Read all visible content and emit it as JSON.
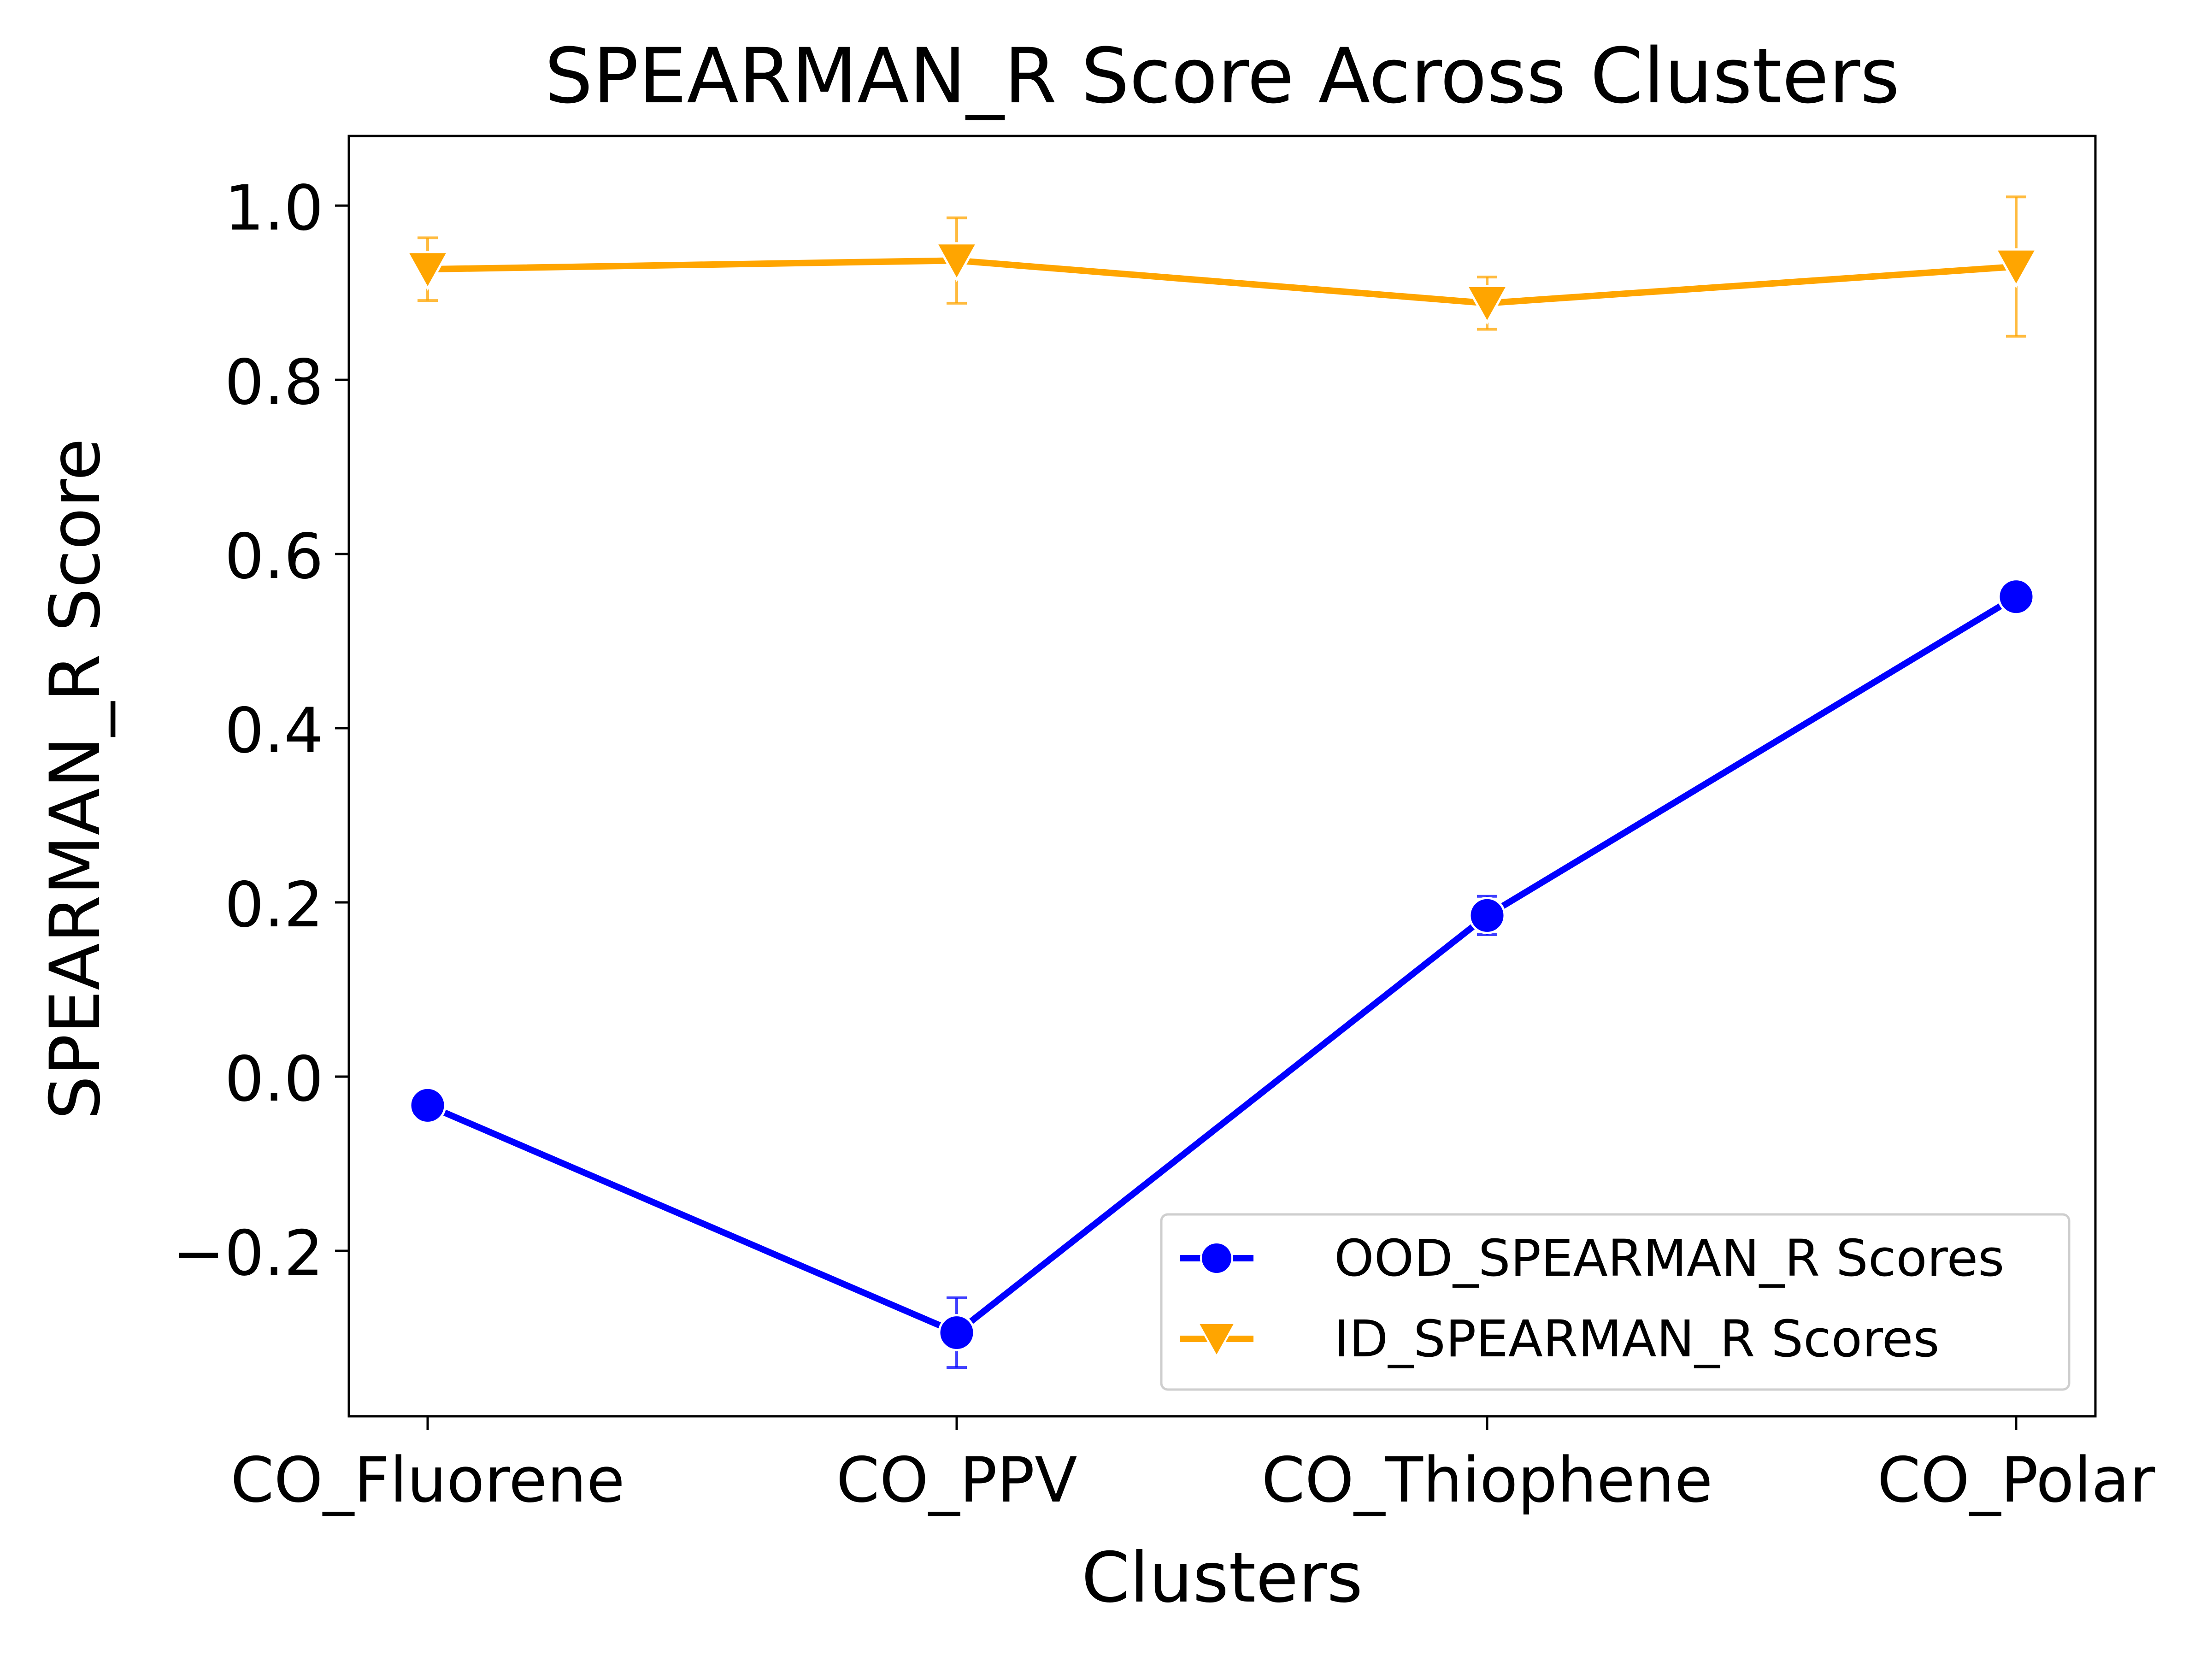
{
  "chart_data": {
    "type": "line",
    "title": "SPEARMAN_R Score Across Clusters",
    "xlabel": "Clusters",
    "ylabel": "SPEARMAN_R Score",
    "categories": [
      "CO_Fluorene",
      "CO_PPV",
      "CO_Thiophene",
      "CO_Polar"
    ],
    "ylim": [
      -0.39,
      1.08
    ],
    "yticks": [
      -0.2,
      0.0,
      0.2,
      0.4,
      0.6,
      0.8,
      1.0
    ],
    "ytick_labels": [
      "−0.2",
      "0.0",
      "0.2",
      "0.4",
      "0.6",
      "0.8",
      "1.0"
    ],
    "legend_position": "lower-right",
    "grid": false,
    "series": [
      {
        "name": "OOD_SPEARMAN_R Scores",
        "marker": "circle",
        "color": "#0000ff",
        "values": [
          -0.033,
          -0.294,
          0.185,
          0.551
        ],
        "errors": [
          0.0,
          0.04,
          0.022,
          0.0
        ]
      },
      {
        "name": "ID_SPEARMAN_R Scores",
        "marker": "triangle-down",
        "color": "#ffa500",
        "values": [
          0.927,
          0.937,
          0.888,
          0.93
        ],
        "errors": [
          0.036,
          0.049,
          0.03,
          0.08
        ]
      }
    ]
  }
}
